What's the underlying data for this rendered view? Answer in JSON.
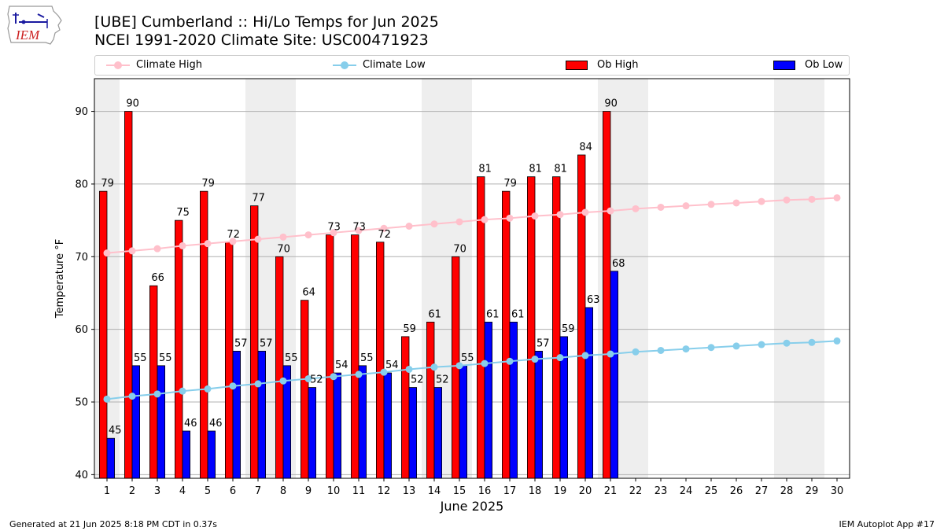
{
  "header": {
    "title_line1": "[UBE] Cumberland :: Hi/Lo Temps for Jun 2025",
    "title_line2": "NCEI 1991-2020 Climate Site: USC00471923",
    "logo_text": "IEM"
  },
  "footer": {
    "generated": "Generated at 21 Jun 2025 8:18 PM CDT in 0.37s",
    "app": "IEM Autoplot App #17"
  },
  "legend": {
    "climate_high": "Climate High",
    "climate_low": "Climate Low",
    "ob_high": "Ob High",
    "ob_low": "Ob Low"
  },
  "chart_data": {
    "type": "bar",
    "xlabel": "June 2025",
    "ylabel": "Temperature °F",
    "ylim": [
      39.5,
      94.5
    ],
    "xlim": [
      0.5,
      30.5
    ],
    "yticks": [
      40,
      50,
      60,
      70,
      80,
      90
    ],
    "grid": true,
    "legend_position": "top",
    "categories": [
      "1",
      "2",
      "3",
      "4",
      "5",
      "6",
      "7",
      "8",
      "9",
      "10",
      "11",
      "12",
      "13",
      "14",
      "15",
      "16",
      "17",
      "18",
      "19",
      "20",
      "21",
      "22",
      "23",
      "24",
      "25",
      "26",
      "27",
      "28",
      "29",
      "30"
    ],
    "series": [
      {
        "name": "Ob High",
        "kind": "bar",
        "color": "#ff0000",
        "values": [
          79,
          90,
          66,
          75,
          79,
          72,
          77,
          70,
          64,
          73,
          73,
          72,
          59,
          61,
          70,
          81,
          79,
          81,
          81,
          84,
          90,
          null,
          null,
          null,
          null,
          null,
          null,
          null,
          null,
          null
        ]
      },
      {
        "name": "Ob Low",
        "kind": "bar",
        "color": "#0000ff",
        "values": [
          45,
          55,
          55,
          46,
          46,
          57,
          57,
          55,
          52,
          54,
          55,
          54,
          52,
          52,
          55,
          61,
          61,
          57,
          59,
          63,
          68,
          null,
          null,
          null,
          null,
          null,
          null,
          null,
          null,
          null
        ]
      },
      {
        "name": "Climate High",
        "kind": "line",
        "color": "#ffc0cb",
        "values": [
          70.5,
          70.8,
          71.1,
          71.5,
          71.8,
          72.1,
          72.4,
          72.7,
          73.0,
          73.3,
          73.6,
          73.9,
          74.2,
          74.5,
          74.8,
          75.1,
          75.3,
          75.6,
          75.8,
          76.1,
          76.3,
          76.6,
          76.8,
          77.0,
          77.2,
          77.4,
          77.6,
          77.8,
          77.9,
          78.1
        ]
      },
      {
        "name": "Climate Low",
        "kind": "line",
        "color": "#87ceeb",
        "values": [
          50.4,
          50.8,
          51.1,
          51.5,
          51.8,
          52.2,
          52.5,
          52.9,
          53.2,
          53.5,
          53.8,
          54.1,
          54.5,
          54.8,
          55.0,
          55.3,
          55.6,
          55.9,
          56.1,
          56.4,
          56.6,
          56.9,
          57.1,
          57.3,
          57.5,
          57.7,
          57.9,
          58.1,
          58.2,
          58.4
        ]
      }
    ],
    "weekend_days": [
      1,
      7,
      8,
      14,
      15,
      21,
      22,
      28,
      29
    ],
    "weekend_shade_color": "#eeeeee"
  }
}
